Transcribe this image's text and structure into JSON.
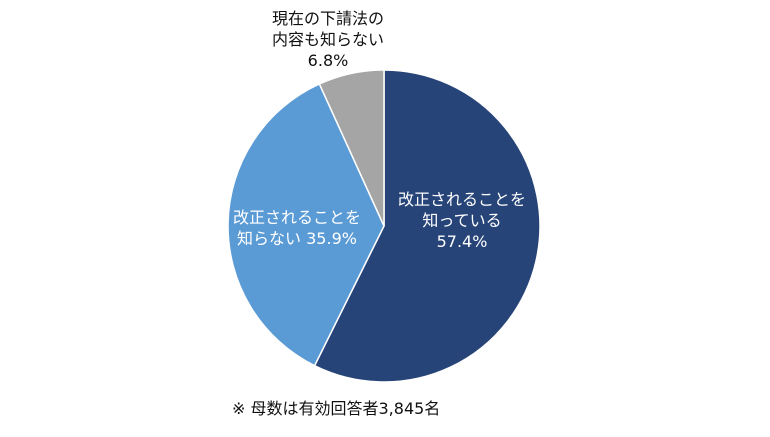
{
  "chart_data": {
    "type": "pie",
    "title": "",
    "slices": [
      {
        "label_lines": [
          "改正されることを",
          "知っている",
          "57.4%"
        ],
        "value": 57.4,
        "color": "#264478"
      },
      {
        "label_lines": [
          "改正されることを",
          "知らない 35.9%"
        ],
        "value": 35.9,
        "color": "#5b9bd5"
      },
      {
        "label_lines": [
          "現在の下請法の",
          "内容も知らない",
          "6.8%"
        ],
        "value": 6.8,
        "color": "#a5a5a5"
      }
    ],
    "label_colors": [
      "#ffffff",
      "#ffffff",
      "#111111"
    ],
    "start": "12 o'clock",
    "direction": "clockwise",
    "legend": "none"
  },
  "footnote": "※ 母数は有効回答者3,845名"
}
